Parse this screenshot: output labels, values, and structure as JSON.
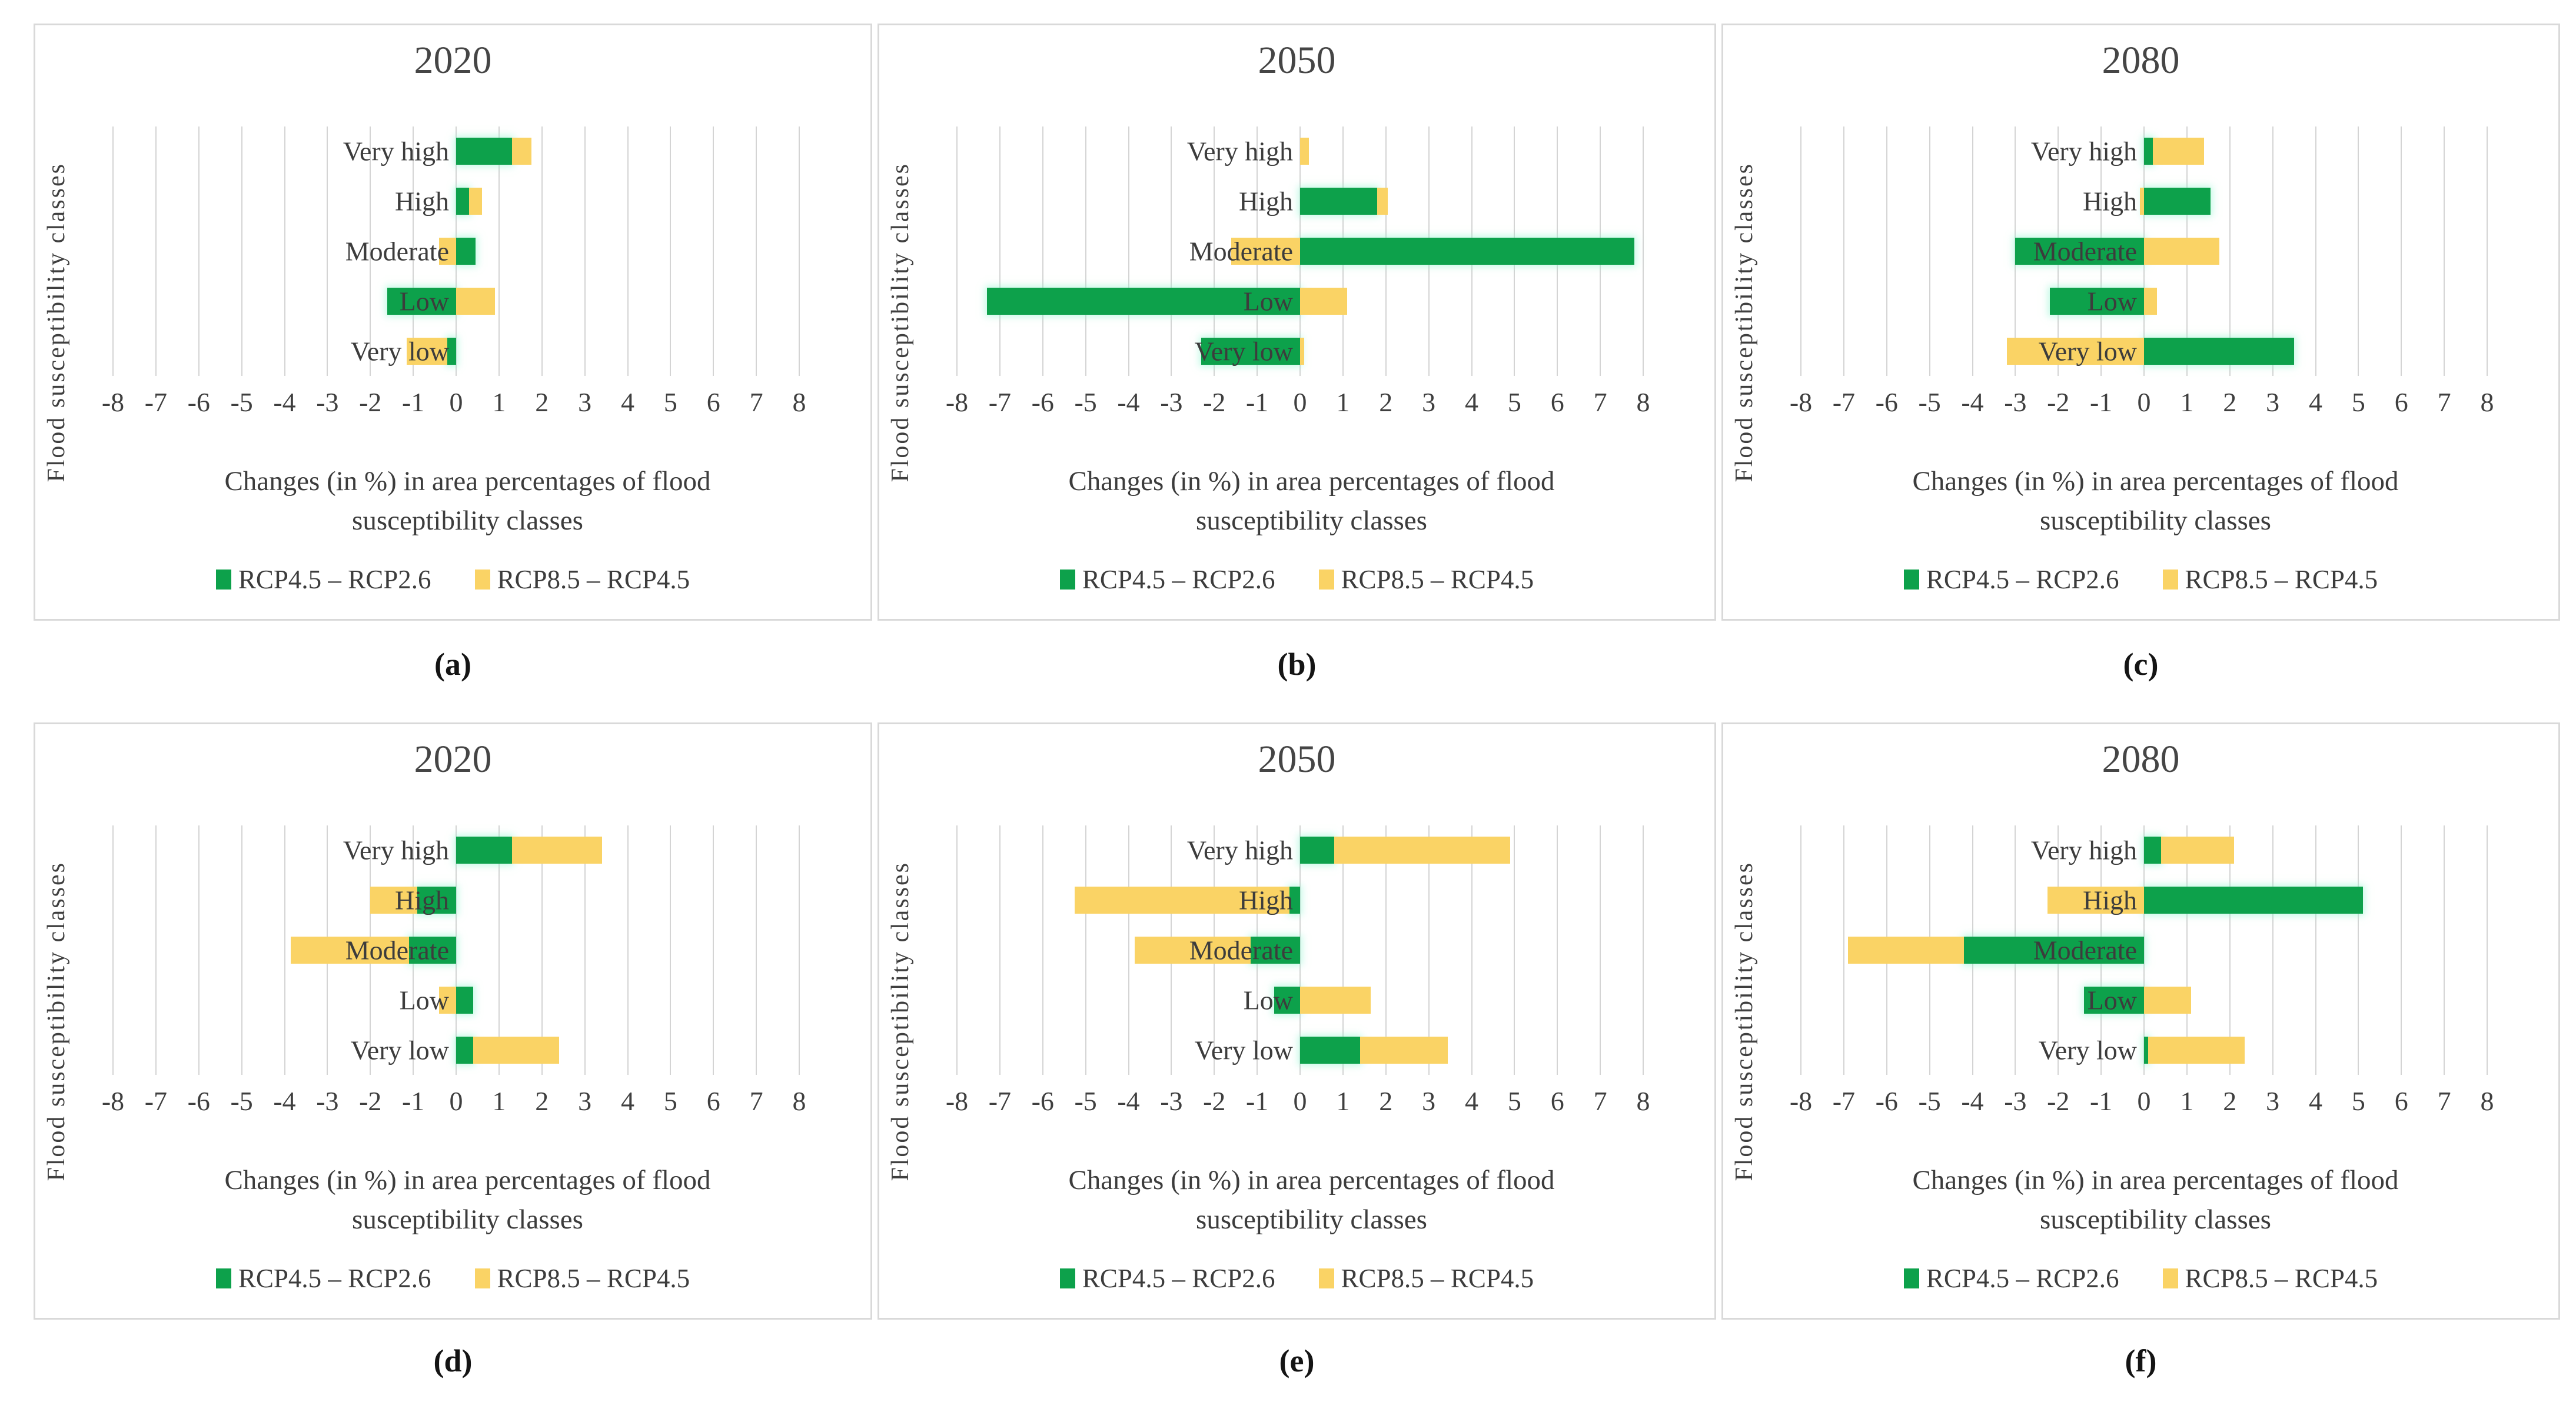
{
  "figure": {
    "background": "#ffffff",
    "panel_border_color": "#d9d9d9",
    "grid_color": "#d4d4d4",
    "text_color": "#3f3f3f",
    "y_axis_title": "Flood susceptibility classes",
    "x_axis_caption": [
      "Changes (in %) in area percentages of flood",
      "susceptibility classes"
    ],
    "x_ticks": [
      -8,
      -7,
      -6,
      -5,
      -4,
      -3,
      -2,
      -1,
      0,
      1,
      2,
      3,
      4,
      5,
      6,
      7,
      8
    ],
    "xlim": [
      -8,
      8
    ],
    "legend": [
      {
        "label": "RCP4.5 – RCP2.6",
        "color": "#0da14b"
      },
      {
        "label": "RCP8.5 – RCP4.5",
        "color": "#fad365"
      }
    ],
    "panel_labels": [
      "(a)",
      "(b)",
      "(c)",
      "(d)",
      "(e)",
      "(f)"
    ]
  },
  "chart_data": [
    {
      "panel_label": "(a)",
      "title": "2020",
      "type": "bar",
      "orientation": "horizontal",
      "grid": true,
      "legend_position": "bottom",
      "xlim": [
        -8,
        8
      ],
      "xlabel": "Changes (in %) in area percentages of flood susceptibility classes",
      "ylabel": "Flood susceptibility classes",
      "categories": [
        "Very high",
        "High",
        "Moderate",
        "Low",
        "Very low"
      ],
      "series": [
        {
          "name": "RCP4.5 – RCP2.6",
          "color": "#0da14b",
          "values": [
            1.3,
            0.3,
            0.45,
            -1.6,
            -0.2
          ]
        },
        {
          "name": "RCP8.5 – RCP4.5",
          "color": "#fad365",
          "values": [
            0.45,
            0.3,
            -0.4,
            0.9,
            -0.95
          ]
        }
      ]
    },
    {
      "panel_label": "(b)",
      "title": "2050",
      "type": "bar",
      "orientation": "horizontal",
      "grid": true,
      "legend_position": "bottom",
      "xlim": [
        -8,
        8
      ],
      "xlabel": "Changes (in %) in area percentages of flood susceptibility classes",
      "ylabel": "Flood susceptibility classes",
      "categories": [
        "Very high",
        "High",
        "Moderate",
        "Low",
        "Very low"
      ],
      "series": [
        {
          "name": "RCP4.5 – RCP2.6",
          "color": "#0da14b",
          "values": [
            0,
            1.8,
            7.8,
            -7.3,
            -2.3
          ]
        },
        {
          "name": "RCP8.5 – RCP4.5",
          "color": "#fad365",
          "values": [
            0.2,
            0.25,
            -1.6,
            1.1,
            0.1
          ]
        }
      ]
    },
    {
      "panel_label": "(c)",
      "title": "2080",
      "type": "bar",
      "orientation": "horizontal",
      "grid": true,
      "legend_position": "bottom",
      "xlim": [
        -8,
        8
      ],
      "xlabel": "Changes (in %) in area percentages of flood susceptibility classes",
      "ylabel": "Flood susceptibility classes",
      "categories": [
        "Very high",
        "High",
        "Moderate",
        "Low",
        "Very low"
      ],
      "series": [
        {
          "name": "RCP4.5 – RCP2.6",
          "color": "#0da14b",
          "values": [
            0.2,
            1.55,
            -3.0,
            -2.2,
            3.5
          ]
        },
        {
          "name": "RCP8.5 – RCP4.5",
          "color": "#fad365",
          "values": [
            1.2,
            -0.1,
            1.75,
            0.3,
            -3.2
          ]
        }
      ]
    },
    {
      "panel_label": "(d)",
      "title": "2020",
      "type": "bar",
      "orientation": "horizontal",
      "grid": true,
      "legend_position": "bottom",
      "xlim": [
        -8,
        8
      ],
      "xlabel": "Changes (in %) in area percentages of flood susceptibility classes",
      "ylabel": "Flood susceptibility classes",
      "categories": [
        "Very high",
        "High",
        "Moderate",
        "Low",
        "Very low"
      ],
      "series": [
        {
          "name": "RCP4.5 – RCP2.6",
          "color": "#0da14b",
          "values": [
            1.3,
            -0.9,
            -1.1,
            0.4,
            0.4
          ]
        },
        {
          "name": "RCP8.5 – RCP4.5",
          "color": "#fad365",
          "values": [
            2.1,
            -1.1,
            -2.75,
            -0.4,
            2.0
          ]
        }
      ]
    },
    {
      "panel_label": "(e)",
      "title": "2050",
      "type": "bar",
      "orientation": "horizontal",
      "grid": true,
      "legend_position": "bottom",
      "xlim": [
        -8,
        8
      ],
      "xlabel": "Changes (in %) in area percentages of flood susceptibility classes",
      "ylabel": "Flood susceptibility classes",
      "categories": [
        "Very high",
        "High",
        "Moderate",
        "Low",
        "Very low"
      ],
      "series": [
        {
          "name": "RCP4.5 – RCP2.6",
          "color": "#0da14b",
          "values": [
            0.8,
            -0.25,
            -1.15,
            -0.6,
            1.4
          ]
        },
        {
          "name": "RCP8.5 – RCP4.5",
          "color": "#fad365",
          "values": [
            4.1,
            -5.0,
            -2.7,
            1.65,
            2.05
          ]
        }
      ]
    },
    {
      "panel_label": "(f)",
      "title": "2080",
      "type": "bar",
      "orientation": "horizontal",
      "grid": true,
      "legend_position": "bottom",
      "xlim": [
        -8,
        8
      ],
      "xlabel": "Changes (in %) in area percentages of flood susceptibility classes",
      "ylabel": "Flood susceptibility classes",
      "categories": [
        "Very high",
        "High",
        "Moderate",
        "Low",
        "Very low"
      ],
      "series": [
        {
          "name": "RCP4.5 – RCP2.6",
          "color": "#0da14b",
          "values": [
            0.4,
            5.1,
            -4.2,
            -1.4,
            0.1
          ]
        },
        {
          "name": "RCP8.5 – RCP4.5",
          "color": "#fad365",
          "values": [
            1.7,
            -2.25,
            -2.7,
            1.1,
            2.25
          ]
        }
      ]
    }
  ]
}
